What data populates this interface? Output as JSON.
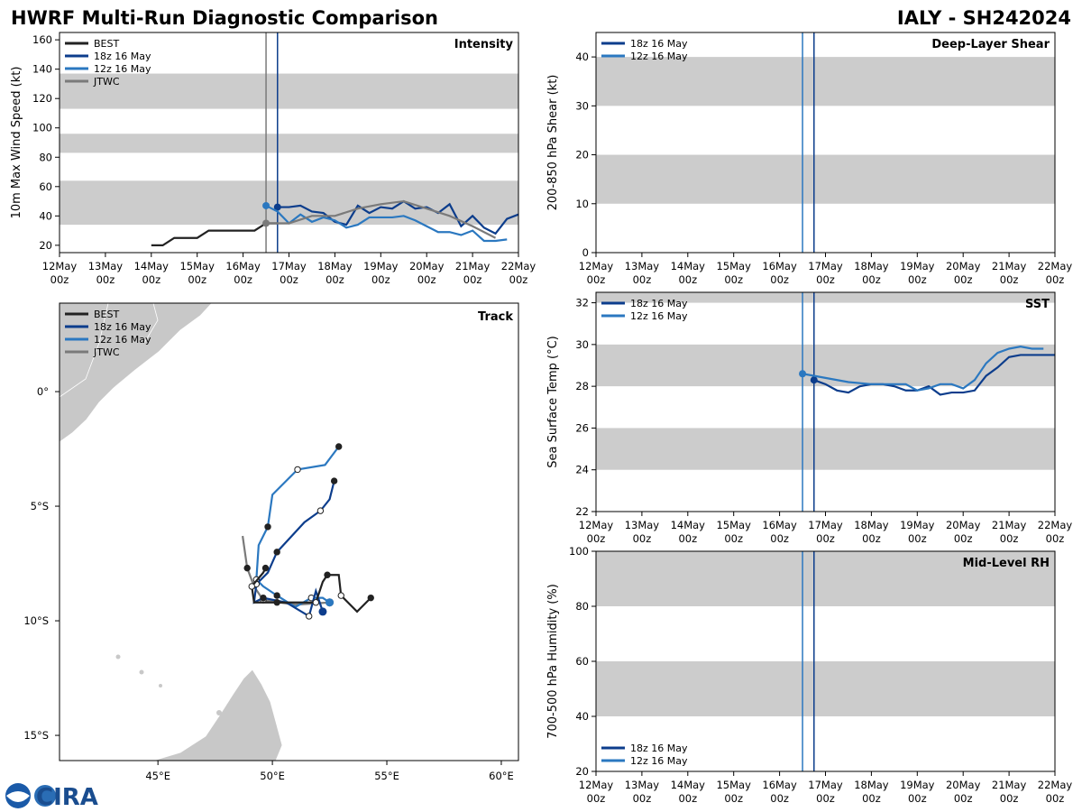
{
  "title": "HWRF Multi-Run Diagnostic Comparison",
  "storm": "IALY - SH242024",
  "logo": "CIRA",
  "chart_data": [
    {
      "type": "line",
      "title": "Intensity",
      "ylabel": "10m Max Wind Speed (kt)",
      "xlim": [
        "12May 00z",
        "22May 00z"
      ],
      "xticks": [
        "12May 00z",
        "13May 00z",
        "14May 00z",
        "15May 00z",
        "16May 00z",
        "17May 00z",
        "18May 00z",
        "19May 00z",
        "20May 00z",
        "21May 00z",
        "22May 00z"
      ],
      "ylim": [
        15,
        165
      ],
      "yticks": [
        20,
        40,
        60,
        80,
        100,
        120,
        140,
        160
      ],
      "bands": [
        [
          34,
          64
        ],
        [
          83,
          96
        ],
        [
          113,
          137
        ]
      ],
      "band_color": "#cccccc",
      "legend": "upper left",
      "vlines": [
        {
          "x": "16May 12z",
          "color": "#7a7a7a"
        },
        {
          "x": "16May 18z",
          "color": "#0c3d8c"
        }
      ],
      "series": [
        {
          "name": "BEST",
          "color": "#222222",
          "start_marker": false,
          "x": [
            "14May 00z",
            "14May 06z",
            "14May 12z",
            "14May 18z",
            "15May 00z",
            "15May 06z",
            "15May 12z",
            "15May 18z",
            "16May 00z",
            "16May 06z",
            "16May 12z",
            "16May 18z"
          ],
          "values": [
            20,
            20,
            25,
            25,
            25,
            30,
            30,
            30,
            30,
            30,
            35,
            35
          ]
        },
        {
          "name": "18z 16 May",
          "color": "#0c3d8c",
          "start_marker": true,
          "x": [
            "16May 18z",
            "17May 00z",
            "17May 06z",
            "17May 12z",
            "17May 18z",
            "18May 00z",
            "18May 06z",
            "18May 12z",
            "18May 18z",
            "19May 00z",
            "19May 06z",
            "19May 12z",
            "19May 18z",
            "20May 00z",
            "20May 06z",
            "20May 12z",
            "20May 18z",
            "21May 00z",
            "21May 06z",
            "21May 12z",
            "21May 18z",
            "22May 00z"
          ],
          "values": [
            46,
            46,
            47,
            43,
            42,
            36,
            34,
            47,
            42,
            46,
            45,
            50,
            45,
            46,
            42,
            48,
            33,
            40,
            32,
            28,
            38,
            41
          ]
        },
        {
          "name": "12z 16 May",
          "color": "#2b78c0",
          "start_marker": true,
          "x": [
            "16May 12z",
            "16May 18z",
            "17May 00z",
            "17May 06z",
            "17May 12z",
            "17May 18z",
            "18May 00z",
            "18May 06z",
            "18May 12z",
            "18May 18z",
            "19May 00z",
            "19May 06z",
            "19May 12z",
            "19May 18z",
            "20May 00z",
            "20May 06z",
            "20May 12z",
            "20May 18z",
            "21May 00z",
            "21May 06z",
            "21May 12z",
            "21May 18z"
          ],
          "values": [
            47,
            43,
            35,
            41,
            36,
            39,
            37,
            32,
            34,
            39,
            39,
            39,
            40,
            37,
            33,
            29,
            29,
            27,
            30,
            23,
            23,
            24
          ]
        },
        {
          "name": "JTWC",
          "color": "#7a7a7a",
          "start_marker": true,
          "x": [
            "16May 12z",
            "17May 00z",
            "17May 12z",
            "18May 00z",
            "18May 12z",
            "19May 00z",
            "19May 12z",
            "20May 00z",
            "20May 12z",
            "21May 00z",
            "21May 12z"
          ],
          "values": [
            35,
            35,
            40,
            40,
            45,
            48,
            50,
            45,
            40,
            33,
            25
          ]
        }
      ]
    },
    {
      "type": "line",
      "title": "Deep-Layer Shear",
      "ylabel": "200-850 hPa Shear (kt)",
      "xlim": [
        "12May 00z",
        "22May 00z"
      ],
      "xticks": [
        "12May 00z",
        "13May 00z",
        "14May 00z",
        "15May 00z",
        "16May 00z",
        "17May 00z",
        "18May 00z",
        "19May 00z",
        "20May 00z",
        "21May 00z",
        "22May 00z"
      ],
      "ylim": [
        0,
        45
      ],
      "yticks": [
        0,
        10,
        20,
        30,
        40
      ],
      "bands": [
        [
          10,
          20
        ],
        [
          30,
          40
        ]
      ],
      "band_color": "#cccccc",
      "legend": "upper left",
      "vlines": [
        {
          "x": "16May 12z",
          "color": "#2b78c0"
        },
        {
          "x": "16May 18z",
          "color": "#0c3d8c"
        }
      ],
      "series": [
        {
          "name": "18z 16 May",
          "color": "#0c3d8c",
          "start_marker": true,
          "x": [],
          "values": []
        },
        {
          "name": "12z 16 May",
          "color": "#2b78c0",
          "start_marker": true,
          "x": [],
          "values": []
        }
      ]
    },
    {
      "type": "line",
      "title": "SST",
      "ylabel": "Sea Surface Temp (°C)",
      "xlim": [
        "12May 00z",
        "22May 00z"
      ],
      "xticks": [
        "12May 00z",
        "13May 00z",
        "14May 00z",
        "15May 00z",
        "16May 00z",
        "17May 00z",
        "18May 00z",
        "19May 00z",
        "20May 00z",
        "21May 00z",
        "22May 00z"
      ],
      "ylim": [
        22,
        32.5
      ],
      "yticks": [
        22,
        24,
        26,
        28,
        30,
        32
      ],
      "bands": [
        [
          24,
          26
        ],
        [
          28,
          30
        ],
        [
          32,
          34
        ]
      ],
      "band_color": "#cccccc",
      "legend": "upper left",
      "vlines": [
        {
          "x": "16May 12z",
          "color": "#2b78c0"
        },
        {
          "x": "16May 18z",
          "color": "#0c3d8c"
        }
      ],
      "series": [
        {
          "name": "18z 16 May",
          "color": "#0c3d8c",
          "start_marker": true,
          "x": [
            "16May 18z",
            "17May 00z",
            "17May 06z",
            "17May 12z",
            "17May 18z",
            "18May 00z",
            "18May 06z",
            "18May 12z",
            "18May 18z",
            "19May 00z",
            "19May 06z",
            "19May 12z",
            "19May 18z",
            "20May 00z",
            "20May 06z",
            "20May 12z",
            "20May 18z",
            "21May 00z",
            "21May 06z",
            "21May 12z",
            "22May 00z"
          ],
          "values": [
            28.3,
            28.1,
            27.8,
            27.7,
            28.0,
            28.1,
            28.1,
            28.0,
            27.8,
            27.8,
            28.0,
            27.6,
            27.7,
            27.7,
            27.8,
            28.5,
            28.9,
            29.4,
            29.5,
            29.5,
            29.5
          ]
        },
        {
          "name": "12z 16 May",
          "color": "#2b78c0",
          "start_marker": true,
          "x": [
            "16May 12z",
            "17May 00z",
            "17May 12z",
            "18May 00z",
            "18May 12z",
            "18May 18z",
            "19May 00z",
            "19May 06z",
            "19May 12z",
            "19May 18z",
            "20May 00z",
            "20May 06z",
            "20May 12z",
            "20May 18z",
            "21May 00z",
            "21May 06z",
            "21May 12z",
            "21May 18z"
          ],
          "values": [
            28.6,
            28.4,
            28.2,
            28.1,
            28.1,
            28.1,
            27.8,
            27.9,
            28.1,
            28.1,
            27.9,
            28.3,
            29.1,
            29.6,
            29.8,
            29.9,
            29.8,
            29.8
          ]
        }
      ]
    },
    {
      "type": "line",
      "title": "Mid-Level RH",
      "ylabel": "700-500 hPa Humidity (%)",
      "xlim": [
        "12May 00z",
        "22May 00z"
      ],
      "xticks": [
        "12May 00z",
        "13May 00z",
        "14May 00z",
        "15May 00z",
        "16May 00z",
        "17May 00z",
        "18May 00z",
        "19May 00z",
        "20May 00z",
        "21May 00z",
        "22May 00z"
      ],
      "ylim": [
        20,
        100
      ],
      "yticks": [
        20,
        40,
        60,
        80,
        100
      ],
      "bands": [
        [
          40,
          60
        ],
        [
          80,
          100
        ]
      ],
      "band_color": "#cccccc",
      "legend": "lower left",
      "vlines": [
        {
          "x": "16May 12z",
          "color": "#2b78c0"
        },
        {
          "x": "16May 18z",
          "color": "#0c3d8c"
        }
      ],
      "series": [
        {
          "name": "18z 16 May",
          "color": "#0c3d8c",
          "start_marker": true,
          "x": [],
          "values": []
        },
        {
          "name": "12z 16 May",
          "color": "#2b78c0",
          "start_marker": true,
          "x": [],
          "values": []
        }
      ]
    },
    {
      "type": "track",
      "title": "Track",
      "legend": "upper left",
      "xlim": [
        40.7,
        60.75
      ],
      "ylim": [
        -16.1,
        3.86
      ],
      "xticks": [
        {
          "value": 45,
          "label": "45°E"
        },
        {
          "value": 50,
          "label": "50°E"
        },
        {
          "value": 55,
          "label": "55°E"
        },
        {
          "value": 60,
          "label": "60°E"
        }
      ],
      "yticks": [
        {
          "value": 0,
          "label": "0°"
        },
        {
          "value": -5,
          "label": "5°S"
        },
        {
          "value": -10,
          "label": "10°S"
        },
        {
          "value": -15,
          "label": "15°S"
        }
      ],
      "series": [
        {
          "name": "BEST",
          "color": "#222222",
          "start_marker": false,
          "x": [
            54.3,
            53.7,
            53.0,
            52.9,
            52.4,
            52.2,
            51.9,
            51.3,
            50.2,
            49.2,
            49.1,
            49.6,
            49.7
          ],
          "values": [
            -9.0,
            -9.6,
            -8.9,
            -8.0,
            -8.0,
            -8.3,
            -9.2,
            -9.2,
            -9.2,
            -9.2,
            -8.5,
            -7.9,
            -7.7
          ]
        },
        {
          "name": "18z 16 May",
          "color": "#0c3d8c",
          "start_marker": true,
          "x": [
            52.2,
            51.9,
            51.6,
            50.6,
            49.6,
            49.2,
            49.3,
            49.8,
            50.2,
            51.4,
            52.1,
            52.5,
            52.7
          ],
          "values": [
            -9.6,
            -8.7,
            -9.8,
            -9.2,
            -9.0,
            -9.2,
            -8.4,
            -7.9,
            -7.0,
            -5.7,
            -5.2,
            -4.7,
            -3.9
          ]
        },
        {
          "name": "12z 16 May",
          "color": "#2b78c0",
          "start_marker": true,
          "x": [
            52.5,
            52.2,
            51.7,
            51.0,
            50.2,
            49.6,
            49.3,
            49.4,
            49.8,
            50.0,
            51.1,
            52.3,
            52.9
          ],
          "values": [
            -9.2,
            -9.0,
            -9.0,
            -9.4,
            -8.9,
            -8.5,
            -8.2,
            -6.7,
            -5.9,
            -4.5,
            -3.4,
            -3.2,
            -2.4
          ]
        },
        {
          "name": "JTWC",
          "color": "#7a7a7a",
          "start_marker": true,
          "x": [
            52.5,
            51.0,
            49.6,
            49.2,
            48.9,
            48.7
          ],
          "values": [
            -9.2,
            -9.3,
            -9.1,
            -8.5,
            -7.7,
            -6.3
          ]
        }
      ]
    }
  ]
}
